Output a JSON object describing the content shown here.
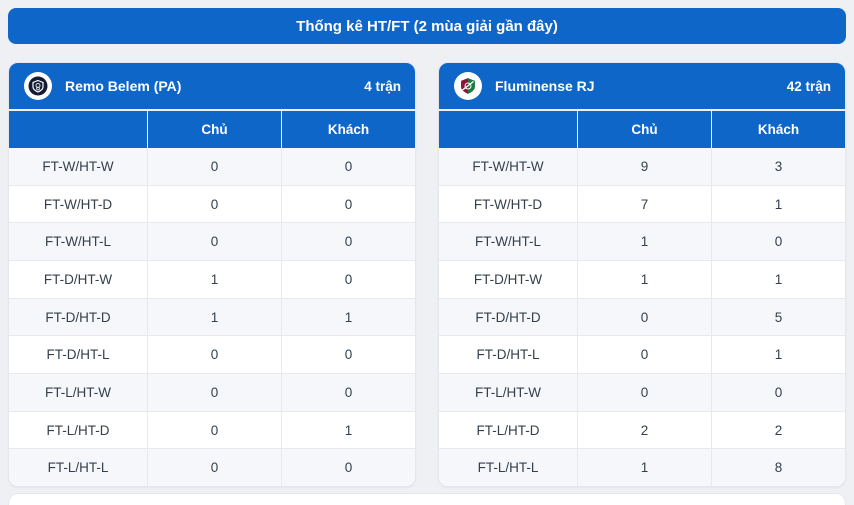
{
  "title": "Thống kê HT/FT (2 mùa giải gần đây)",
  "colors": {
    "primary_blue": "#0f66c9",
    "page_bg": "#eef0f4",
    "row_alt_bg": "#f6f7fa",
    "row_text": "#343f4b"
  },
  "columns": {
    "home": "Chủ",
    "away": "Khách"
  },
  "categories": [
    "FT-W/HT-W",
    "FT-W/HT-D",
    "FT-W/HT-L",
    "FT-D/HT-W",
    "FT-D/HT-D",
    "FT-D/HT-L",
    "FT-L/HT-W",
    "FT-L/HT-D",
    "FT-L/HT-L"
  ],
  "panels": [
    {
      "team": "Remo Belem (PA)",
      "matches": "4 trận",
      "logo": "remo-belem-crest-icon",
      "home": [
        0,
        0,
        0,
        1,
        1,
        0,
        0,
        0,
        0
      ],
      "away": [
        0,
        0,
        0,
        0,
        1,
        0,
        0,
        1,
        0
      ]
    },
    {
      "team": "Fluminense RJ",
      "matches": "42 trận",
      "logo": "fluminense-crest-icon",
      "home": [
        9,
        7,
        1,
        1,
        0,
        0,
        0,
        2,
        1
      ],
      "away": [
        3,
        1,
        0,
        1,
        5,
        1,
        0,
        2,
        8
      ]
    }
  ]
}
